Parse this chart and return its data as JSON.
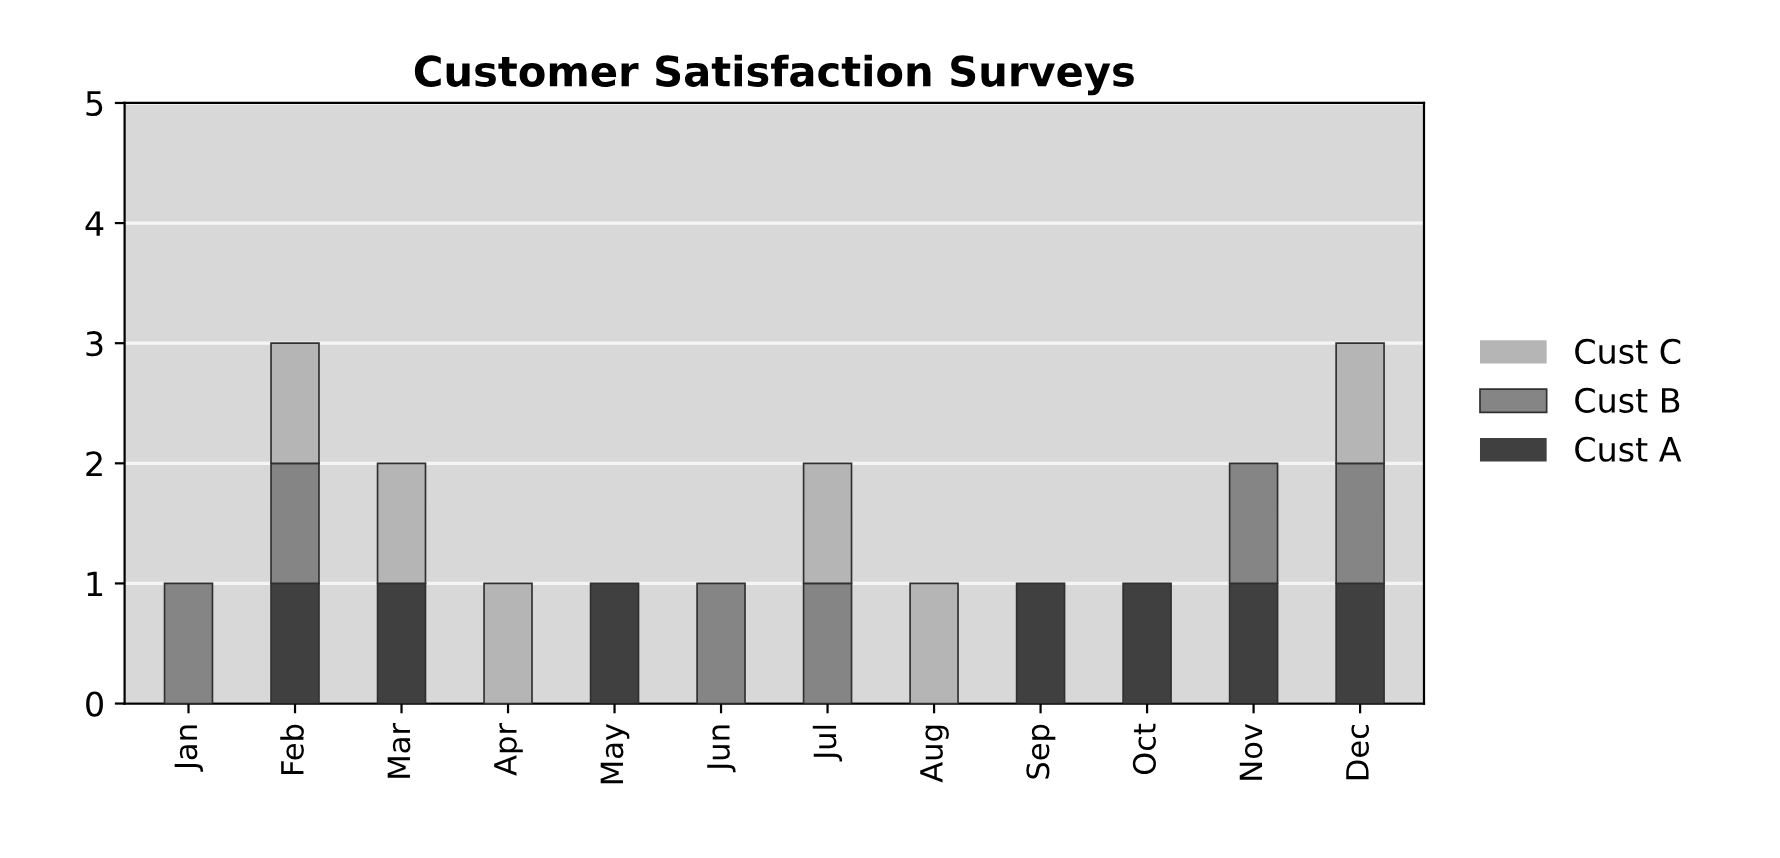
{
  "chart_data": {
    "type": "bar",
    "title": "Customer Satisfaction Surveys",
    "categories": [
      "Jan",
      "Feb",
      "Mar",
      "Apr",
      "May",
      "Jun",
      "Jul",
      "Aug",
      "Sep",
      "Oct",
      "Nov",
      "Dec"
    ],
    "stacked": true,
    "series": [
      {
        "name": "Cust A",
        "color": "#404040",
        "values": [
          0,
          1,
          1,
          0,
          1,
          0,
          0,
          0,
          1,
          1,
          1,
          1
        ]
      },
      {
        "name": "Cust B",
        "color": "#858585",
        "values": [
          1,
          1,
          0,
          0,
          0,
          1,
          1,
          0,
          0,
          0,
          1,
          1
        ]
      },
      {
        "name": "Cust C",
        "color": "#b5b5b5",
        "values": [
          0,
          1,
          1,
          1,
          0,
          0,
          1,
          1,
          0,
          0,
          0,
          1
        ]
      }
    ],
    "ylim": [
      0,
      5
    ],
    "yticks": [
      0,
      1,
      2,
      3,
      4,
      5
    ],
    "grid": "y",
    "legend": "right"
  }
}
